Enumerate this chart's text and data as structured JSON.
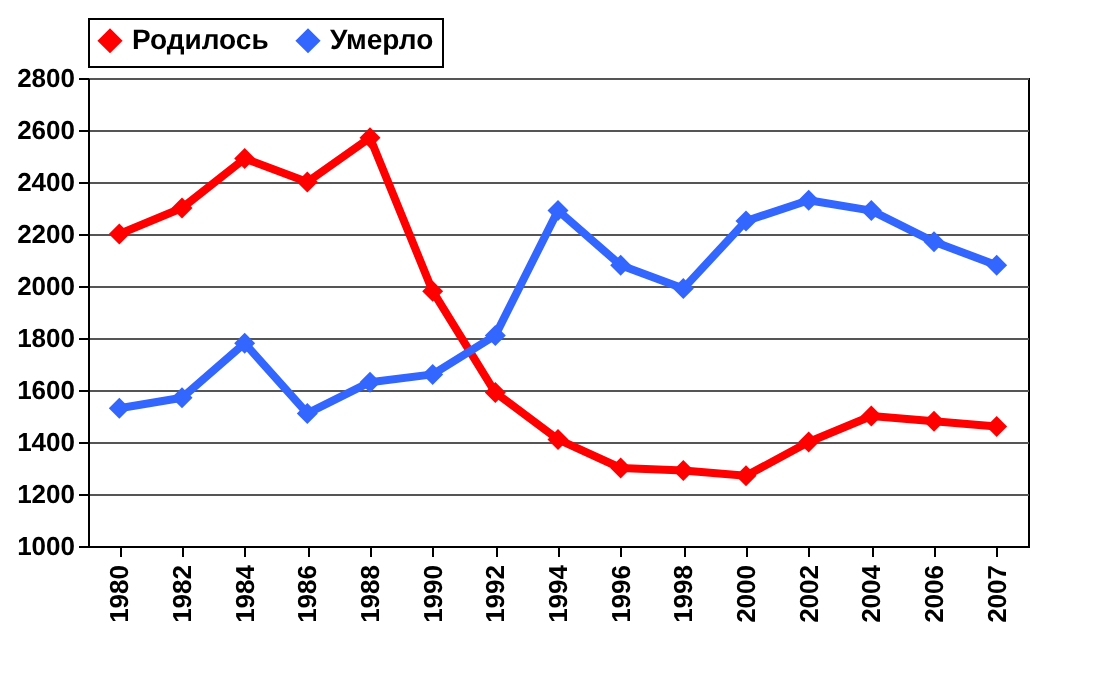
{
  "chart_data": {
    "type": "line",
    "categories": [
      "1980",
      "1982",
      "1984",
      "1986",
      "1988",
      "1990",
      "1992",
      "1994",
      "1996",
      "1998",
      "2000",
      "2002",
      "2004",
      "2006",
      "2007"
    ],
    "series": [
      {
        "name": "Родилось",
        "color": "#ff0000",
        "values": [
          2200,
          2300,
          2490,
          2400,
          2570,
          1980,
          1590,
          1410,
          1300,
          1290,
          1270,
          1400,
          1500,
          1480,
          1460
        ]
      },
      {
        "name": "Умерло",
        "color": "#3366ff",
        "values": [
          1530,
          1570,
          1780,
          1510,
          1630,
          1660,
          1810,
          2290,
          2080,
          1990,
          2250,
          2330,
          2290,
          2170,
          2080
        ]
      }
    ],
    "ylim": [
      1000,
      2800
    ],
    "yticks": [
      1000,
      1200,
      1400,
      1600,
      1800,
      2000,
      2200,
      2400,
      2600,
      2800
    ],
    "grid": "y",
    "legend": "top",
    "marker": "diamond",
    "line_style": "solid"
  }
}
